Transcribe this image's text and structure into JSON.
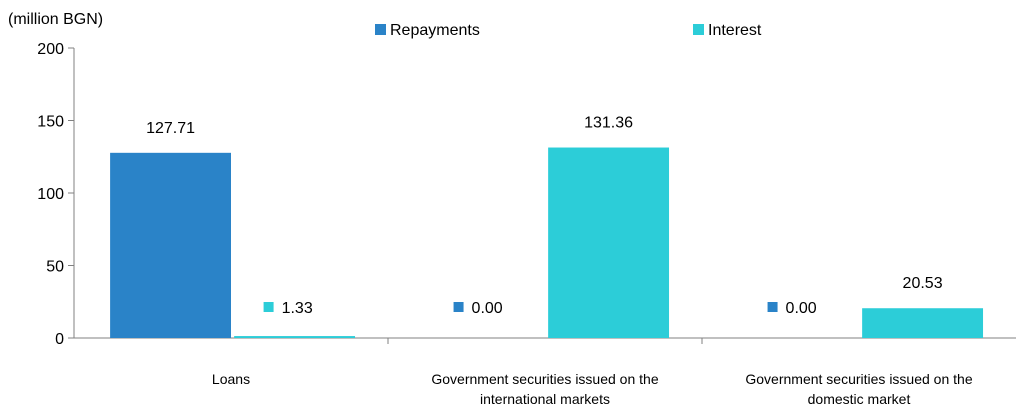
{
  "chart_data": {
    "type": "bar",
    "ylabel": "(million BGN)",
    "ylim": [
      0,
      200
    ],
    "yticks": [
      0,
      50,
      100,
      150,
      200
    ],
    "categories": [
      [
        "Loans"
      ],
      [
        "Government securities issued on the",
        "international markets"
      ],
      [
        "Government securities issued on the",
        "domestic market"
      ]
    ],
    "series": [
      {
        "name": "Repayments",
        "color": "#2a83c8",
        "values": [
          127.71,
          0.0,
          0.0
        ],
        "labels": [
          "127.71",
          "0.00",
          "0.00"
        ]
      },
      {
        "name": "Interest",
        "color": "#2ccdd8",
        "values": [
          1.33,
          131.36,
          20.53
        ],
        "labels": [
          "1.33",
          "131.36",
          "20.53"
        ]
      }
    ],
    "legend_position": "top",
    "grid": false
  }
}
